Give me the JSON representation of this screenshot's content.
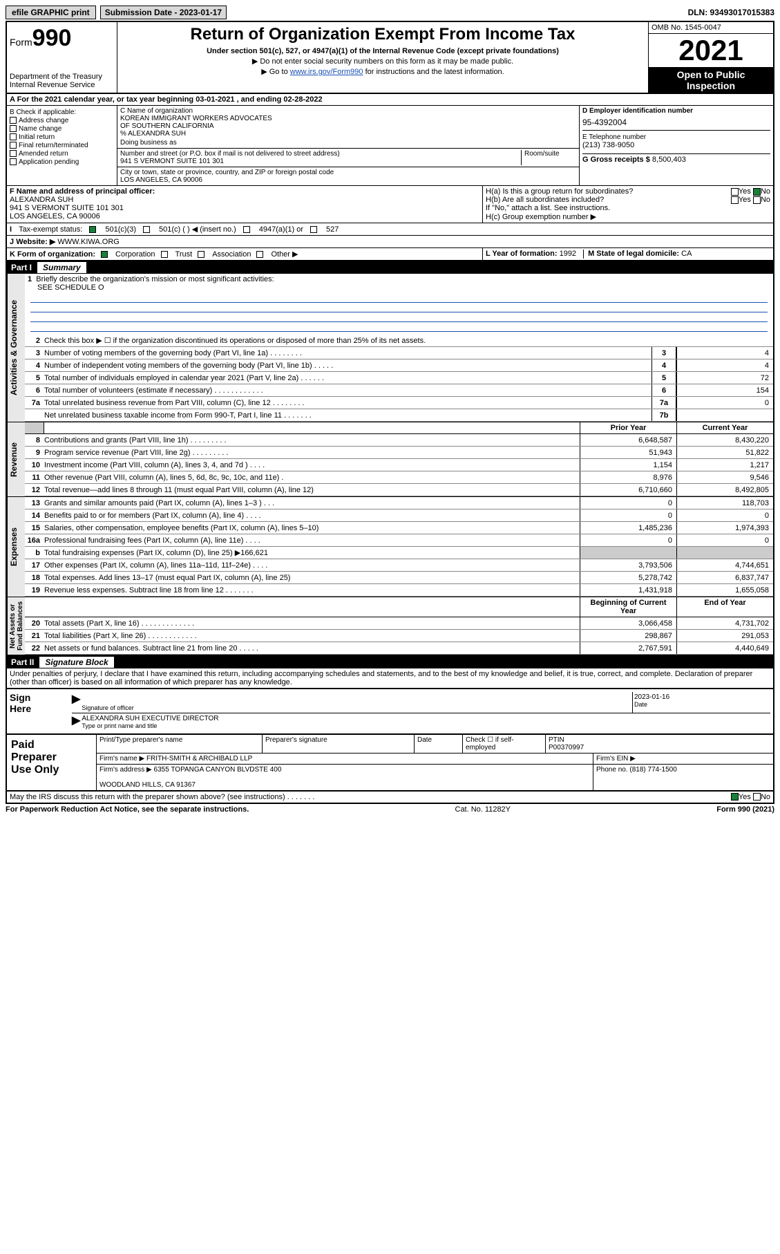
{
  "topbar": {
    "efile": "efile GRAPHIC print",
    "sub_label": "Submission Date - 2023-01-17",
    "dln": "DLN: 93493017015383"
  },
  "header": {
    "form_label": "Form",
    "form_num": "990",
    "dept": "Department of the Treasury\nInternal Revenue Service",
    "title": "Return of Organization Exempt From Income Tax",
    "subtitle": "Under section 501(c), 527, or 4947(a)(1) of the Internal Revenue Code (except private foundations)",
    "note1": "▶ Do not enter social security numbers on this form as it may be made public.",
    "note2_pre": "▶ Go to ",
    "note2_link": "www.irs.gov/Form990",
    "note2_post": " for instructions and the latest information.",
    "omb": "OMB No. 1545-0047",
    "year": "2021",
    "open": "Open to Public\nInspection"
  },
  "sectionA": {
    "text": "A For the 2021 calendar year, or tax year beginning 03-01-2021   , and ending 02-28-2022"
  },
  "boxB": {
    "label": "B Check if applicable:",
    "items": [
      "Address change",
      "Name change",
      "Initial return",
      "Final return/terminated",
      "Amended return",
      "Application pending"
    ]
  },
  "boxC": {
    "name_label": "C Name of organization",
    "name": "KOREAN IMMIGRANT WORKERS ADVOCATES\nOF SOUTHERN CALIFORNIA\n% ALEXANDRA SUH",
    "dba_label": "Doing business as",
    "addr_label": "Number and street (or P.O. box if mail is not delivered to street address)",
    "addr": "941 S VERMONT SUITE 101 301",
    "room_label": "Room/suite",
    "city_label": "City or town, state or province, country, and ZIP or foreign postal code",
    "city": "LOS ANGELES, CA  90006"
  },
  "boxD": {
    "label": "D Employer identification number",
    "ein": "95-4392004",
    "e_label": "E Telephone number",
    "phone": "(213) 738-9050",
    "g_label": "G Gross receipts $",
    "gross": "8,500,403"
  },
  "officer": {
    "label": "F Name and address of principal officer:",
    "name": "ALEXANDRA SUH",
    "addr1": "941 S VERMONT SUITE 101 301",
    "addr2": "LOS ANGELES, CA  90006"
  },
  "h_section": {
    "ha": "H(a)  Is this a group return for subordinates?",
    "hb": "H(b)  Are all subordinates included?",
    "hb_note": "If \"No,\" attach a list. See instructions.",
    "hc": "H(c)  Group exemption number ▶",
    "yes": "Yes",
    "no": "No"
  },
  "tax_status": {
    "label": "Tax-exempt status:",
    "opts": [
      "501(c)(3)",
      "501(c) (  ) ◀ (insert no.)",
      "4947(a)(1) or",
      "527"
    ]
  },
  "website": {
    "label": "Website: ▶",
    "url": "WWW.KIWA.ORG"
  },
  "org_form": {
    "label": "K Form of organization:",
    "opts": [
      "Corporation",
      "Trust",
      "Association",
      "Other ▶"
    ],
    "year_label": "L Year of formation:",
    "year": "1992",
    "state_label": "M State of legal domicile:",
    "state": "CA"
  },
  "partI": {
    "title": "Part I",
    "subtitle": "Summary"
  },
  "summary": {
    "l1_desc": "Briefly describe the organization's mission or most significant activities:",
    "l1_val": "SEE SCHEDULE O",
    "l2_desc": "Check this box ▶ ☐  if the organization discontinued its operations or disposed of more than 25% of its net assets.",
    "rows_ag": [
      {
        "n": "3",
        "d": "Number of voting members of the governing body (Part VI, line 1a)  .   .   .   .   .   .   .   .",
        "b": "3",
        "v": "4"
      },
      {
        "n": "4",
        "d": "Number of independent voting members of the governing body (Part VI, line 1b)  .   .   .   .   .",
        "b": "4",
        "v": "4"
      },
      {
        "n": "5",
        "d": "Total number of individuals employed in calendar year 2021 (Part V, line 2a)  .   .   .   .   .   .",
        "b": "5",
        "v": "72"
      },
      {
        "n": "6",
        "d": "Total number of volunteers (estimate if necessary)  .   .   .   .   .   .   .   .   .   .   .   .",
        "b": "6",
        "v": "154"
      },
      {
        "n": "7a",
        "d": "Total unrelated business revenue from Part VIII, column (C), line 12  .   .   .   .   .   .   .   .",
        "b": "7a",
        "v": "0"
      },
      {
        "n": "",
        "d": "Net unrelated business taxable income from Form 990-T, Part I, line 11  .   .   .   .   .   .   .",
        "b": "7b",
        "v": ""
      }
    ],
    "col_prior": "Prior Year",
    "col_current": "Current Year",
    "rows_rev": [
      {
        "n": "8",
        "d": "Contributions and grants (Part VIII, line 1h)   .   .   .   .   .   .   .   .   .",
        "p": "6,648,587",
        "c": "8,430,220"
      },
      {
        "n": "9",
        "d": "Program service revenue (Part VIII, line 2g)   .   .   .   .   .   .   .   .   .",
        "p": "51,943",
        "c": "51,822"
      },
      {
        "n": "10",
        "d": "Investment income (Part VIII, column (A), lines 3, 4, and 7d )   .   .   .   .",
        "p": "1,154",
        "c": "1,217"
      },
      {
        "n": "11",
        "d": "Other revenue (Part VIII, column (A), lines 5, 6d, 8c, 9c, 10c, and 11e)   .",
        "p": "8,976",
        "c": "9,546"
      },
      {
        "n": "12",
        "d": "Total revenue—add lines 8 through 11 (must equal Part VIII, column (A), line 12)",
        "p": "6,710,660",
        "c": "8,492,805"
      }
    ],
    "rows_exp": [
      {
        "n": "13",
        "d": "Grants and similar amounts paid (Part IX, column (A), lines 1–3 )   .   .   .",
        "p": "0",
        "c": "118,703"
      },
      {
        "n": "14",
        "d": "Benefits paid to or for members (Part IX, column (A), line 4)   .   .   .   .",
        "p": "0",
        "c": "0"
      },
      {
        "n": "15",
        "d": "Salaries, other compensation, employee benefits (Part IX, column (A), lines 5–10)",
        "p": "1,485,236",
        "c": "1,974,393"
      },
      {
        "n": "16a",
        "d": "Professional fundraising fees (Part IX, column (A), line 11e)   .   .   .   .",
        "p": "0",
        "c": "0"
      },
      {
        "n": "b",
        "d": "Total fundraising expenses (Part IX, column (D), line 25) ▶166,621",
        "p": "",
        "c": "",
        "shade": true
      },
      {
        "n": "17",
        "d": "Other expenses (Part IX, column (A), lines 11a–11d, 11f–24e)   .   .   .   .",
        "p": "3,793,506",
        "c": "4,744,651"
      },
      {
        "n": "18",
        "d": "Total expenses. Add lines 13–17 (must equal Part IX, column (A), line 25)",
        "p": "5,278,742",
        "c": "6,837,747"
      },
      {
        "n": "19",
        "d": "Revenue less expenses. Subtract line 18 from line 12  .   .   .   .   .   .   .",
        "p": "1,431,918",
        "c": "1,655,058"
      }
    ],
    "col_begin": "Beginning of Current Year",
    "col_end": "End of Year",
    "rows_na": [
      {
        "n": "20",
        "d": "Total assets (Part X, line 16)  .   .   .   .   .   .   .   .   .   .   .   .   .",
        "p": "3,066,458",
        "c": "4,731,702"
      },
      {
        "n": "21",
        "d": "Total liabilities (Part X, line 26)  .   .   .   .   .   .   .   .   .   .   .   .",
        "p": "298,867",
        "c": "291,053"
      },
      {
        "n": "22",
        "d": "Net assets or fund balances. Subtract line 21 from line 20  .   .   .   .   .",
        "p": "2,767,591",
        "c": "4,440,649"
      }
    ]
  },
  "partII": {
    "title": "Part II",
    "subtitle": "Signature Block"
  },
  "penalties": "Under penalties of perjury, I declare that I have examined this return, including accompanying schedules and statements, and to the best of my knowledge and belief, it is true, correct, and complete. Declaration of preparer (other than officer) is based on all information of which preparer has any knowledge.",
  "sign": {
    "here": "Sign\nHere",
    "sig_officer": "Signature of officer",
    "date": "Date",
    "sig_date": "2023-01-16",
    "name_title": "ALEXANDRA SUH  EXECUTIVE DIRECTOR",
    "type_label": "Type or print name and title"
  },
  "paid": {
    "label": "Paid\nPreparer\nUse Only",
    "h1": "Print/Type preparer's name",
    "h2": "Preparer's signature",
    "h3": "Date",
    "h4_check": "Check ☐ if self-employed",
    "h5": "PTIN",
    "ptin": "P00370997",
    "firm_name_label": "Firm's name     ▶",
    "firm_name": "FRITH-SMITH & ARCHIBALD LLP",
    "firm_ein_label": "Firm's EIN ▶",
    "firm_addr_label": "Firm's address ▶",
    "firm_addr": "6355 TOPANGA CANYON BLVDSTE 400\n\nWOODLAND HILLS, CA  91367",
    "phone_label": "Phone no.",
    "phone": "(818) 774-1500"
  },
  "may_irs": {
    "text": "May the IRS discuss this return with the preparer shown above? (see instructions)   .   .   .   .   .   .   .",
    "yes": "Yes",
    "no": "No"
  },
  "footer": {
    "left": "For Paperwork Reduction Act Notice, see the separate instructions.",
    "mid": "Cat. No. 11282Y",
    "right": "Form 990 (2021)"
  },
  "vtabs": {
    "ag": "Activities & Governance",
    "rev": "Revenue",
    "exp": "Expenses",
    "na": "Net Assets or\nFund Balances"
  },
  "colors": {
    "link": "#1a4fb3",
    "check_green": "#1a7f3a",
    "shade": "#cccccc",
    "tab_bg": "#e8e8e8"
  }
}
